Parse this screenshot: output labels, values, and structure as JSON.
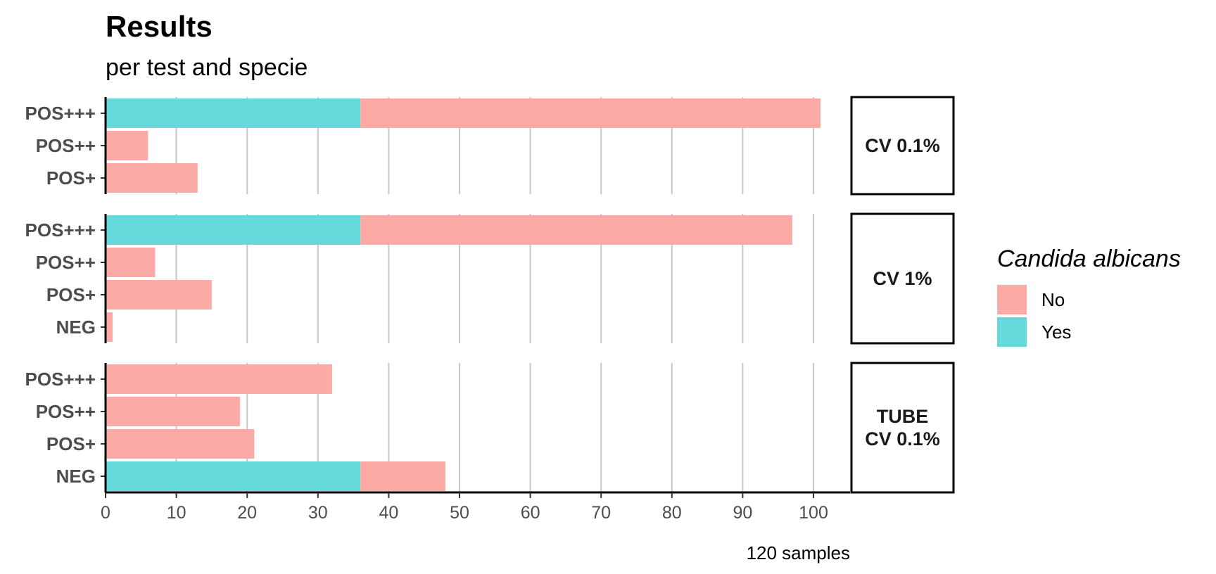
{
  "chart_data": {
    "type": "bar",
    "orientation": "horizontal",
    "stacked": true,
    "title": "Results",
    "subtitle": "per test and specie",
    "caption": "120 samples",
    "xlim": [
      0,
      105
    ],
    "x_ticks": [
      0,
      10,
      20,
      30,
      40,
      50,
      60,
      70,
      80,
      90,
      100
    ],
    "grid": "vertical major",
    "legend": {
      "title": "Candida albicans",
      "position": "right",
      "entries": [
        {
          "name": "No",
          "color": "#fbaaa6"
        },
        {
          "name": "Yes",
          "color": "#66d9dc"
        }
      ]
    },
    "panels": [
      {
        "label": "CV 0.1%",
        "categories": [
          "POS+++",
          "POS++",
          "POS+"
        ],
        "series": [
          {
            "name": "Yes",
            "values": [
              36,
              0,
              0
            ]
          },
          {
            "name": "No",
            "values": [
              65,
              6,
              13
            ]
          }
        ]
      },
      {
        "label": "CV 1%",
        "categories": [
          "POS+++",
          "POS++",
          "POS+",
          "NEG"
        ],
        "series": [
          {
            "name": "Yes",
            "values": [
              36,
              0,
              0,
              0
            ]
          },
          {
            "name": "No",
            "values": [
              61,
              7,
              15,
              1
            ]
          }
        ]
      },
      {
        "label": "TUBE\nCV 0.1%",
        "categories": [
          "POS+++",
          "POS++",
          "POS+",
          "NEG"
        ],
        "series": [
          {
            "name": "Yes",
            "values": [
              0,
              0,
              0,
              36
            ]
          },
          {
            "name": "No",
            "values": [
              32,
              19,
              21,
              12
            ]
          }
        ]
      }
    ]
  }
}
